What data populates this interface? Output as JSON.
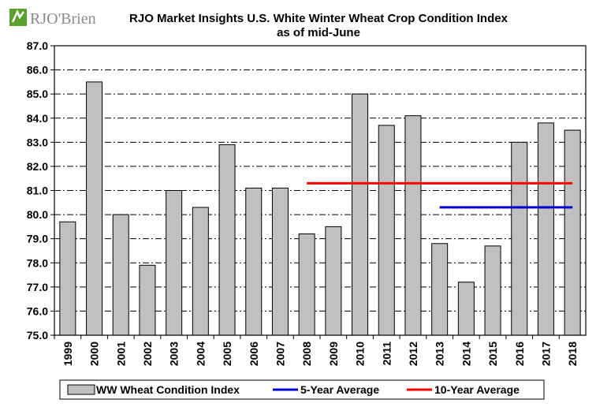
{
  "logo": {
    "text": "RJO'Brien"
  },
  "colors": {
    "bar_fill": "#c0c0c0",
    "bar_stroke": "#000000",
    "avg5": "#0000cc",
    "avg10": "#ff0000",
    "logo_green": "#5aa02c"
  },
  "chart_data": {
    "type": "bar",
    "title": "RJO Market Insights U.S. White Winter Wheat Crop Condition Index",
    "subtitle": "as of mid-June",
    "categories": [
      "1999",
      "2000",
      "2001",
      "2002",
      "2003",
      "2004",
      "2005",
      "2006",
      "2007",
      "2008",
      "2009",
      "2010",
      "2011",
      "2012",
      "2013",
      "2014",
      "2015",
      "2016",
      "2017",
      "2018"
    ],
    "series": [
      {
        "name": "WW Wheat Condition Index",
        "kind": "bar",
        "values": [
          79.7,
          85.5,
          80.0,
          77.9,
          81.0,
          80.3,
          82.9,
          81.1,
          81.1,
          79.2,
          79.5,
          85.0,
          83.7,
          84.1,
          78.8,
          77.2,
          78.7,
          83.0,
          83.8,
          83.5
        ]
      },
      {
        "name": "5-Year Average",
        "kind": "line",
        "from": "2013",
        "to": "2018",
        "value": 80.3
      },
      {
        "name": "10-Year Average",
        "kind": "line",
        "from": "2008",
        "to": "2018",
        "value": 81.3
      }
    ],
    "ylim": [
      75.0,
      87.0
    ],
    "yticks": [
      "75.0",
      "76.0",
      "77.0",
      "78.0",
      "79.0",
      "80.0",
      "81.0",
      "82.0",
      "83.0",
      "84.0",
      "85.0",
      "86.0",
      "87.0"
    ],
    "xlabel": "",
    "ylabel": "",
    "grid": true,
    "legend": "bottom"
  }
}
